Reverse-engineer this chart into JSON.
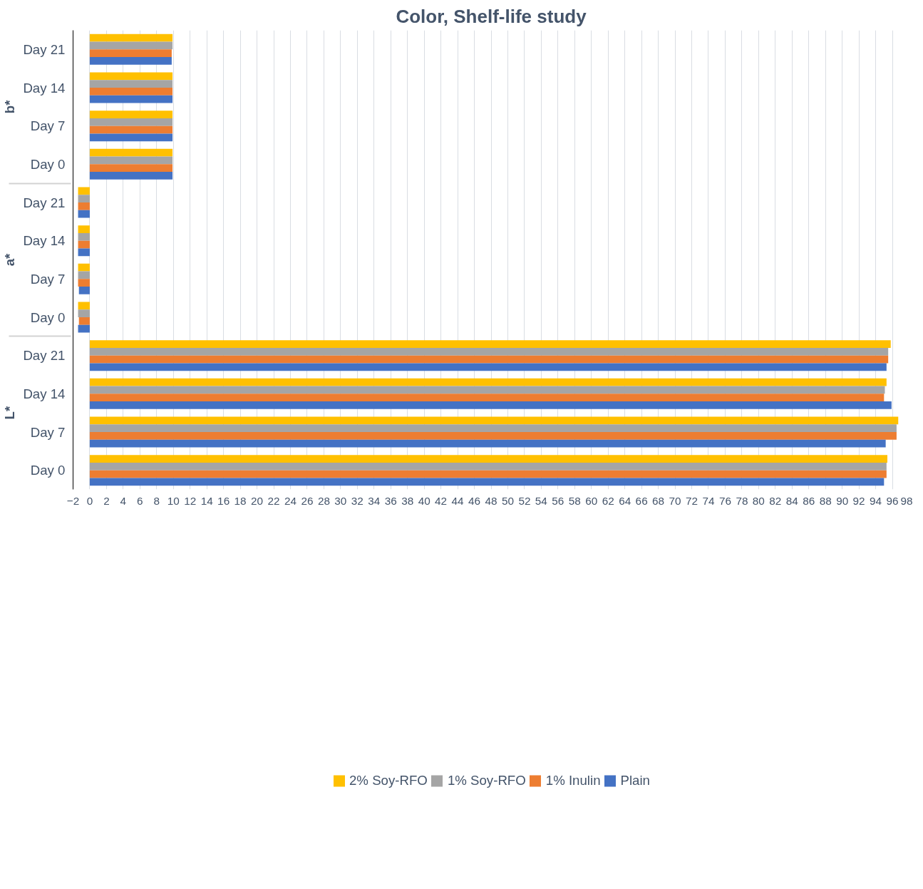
{
  "chart_data": {
    "type": "bar",
    "orientation": "horizontal",
    "title": "Color, Shelf-life study",
    "categories": [
      "Day 21",
      "Day 14",
      "Day 7",
      "Day 0",
      "Day 21",
      "Day 14",
      "Day 7",
      "Day 0",
      "Day 21",
      "Day 14",
      "Day 7",
      "Day 0"
    ],
    "annotations": [
      "b*",
      "a*",
      "L*"
    ],
    "series": [
      {
        "name": "2% Soy-RFO",
        "color": "#ffc000",
        "values": [
          9.9,
          9.9,
          9.9,
          9.9,
          -1.4,
          -1.4,
          -1.4,
          -1.4,
          95.8,
          95.3,
          96.7,
          95.4
        ]
      },
      {
        "name": "1% Soy-RFO",
        "color": "#a5a5a5",
        "values": [
          9.9,
          9.9,
          9.9,
          9.9,
          -1.4,
          -1.4,
          -1.4,
          -1.4,
          95.5,
          95.1,
          96.5,
          95.3
        ]
      },
      {
        "name": "1% Inulin",
        "color": "#ed7d31",
        "values": [
          9.8,
          9.9,
          9.9,
          9.9,
          -1.4,
          -1.4,
          -1.4,
          -1.3,
          95.5,
          95.0,
          96.5,
          95.3
        ]
      },
      {
        "name": "Plain",
        "color": "#4472c4",
        "values": [
          9.8,
          9.9,
          9.9,
          9.9,
          -1.4,
          -1.4,
          -1.3,
          -1.4,
          95.3,
          95.9,
          95.2,
          95.0
        ]
      }
    ],
    "xlim": [
      -2,
      98
    ],
    "xticks": [
      -2,
      0,
      2,
      4,
      6,
      8,
      10,
      12,
      14,
      16,
      18,
      20,
      22,
      24,
      26,
      28,
      30,
      32,
      34,
      36,
      38,
      40,
      42,
      44,
      46,
      48,
      50,
      52,
      54,
      56,
      58,
      60,
      62,
      64,
      66,
      68,
      70,
      72,
      74,
      76,
      78,
      80,
      82,
      84,
      86,
      88,
      90,
      92,
      94,
      96,
      98
    ],
    "grid": "x",
    "legend": "bottom"
  }
}
